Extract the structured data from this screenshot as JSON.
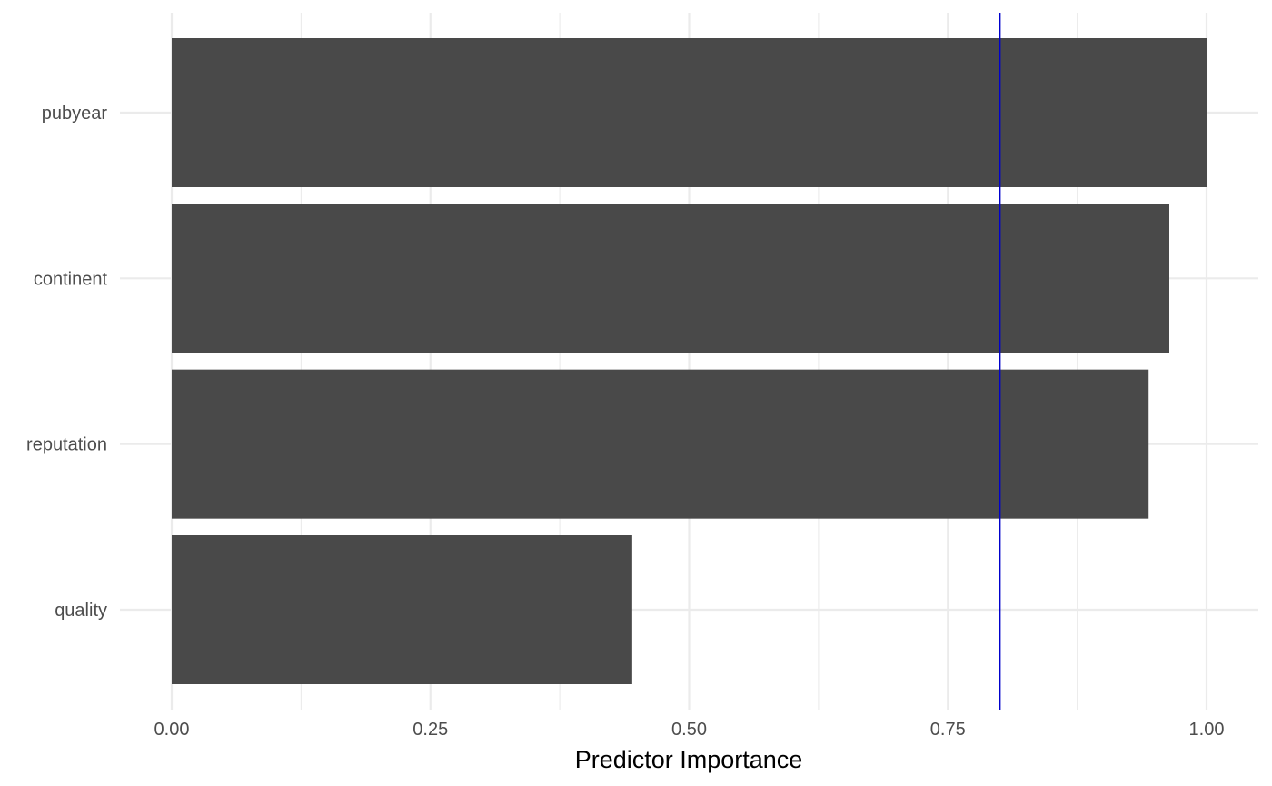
{
  "chart_data": {
    "type": "bar",
    "orientation": "horizontal",
    "categories": [
      "pubyear",
      "continent",
      "reputation",
      "quality"
    ],
    "values": [
      1.0,
      0.964,
      0.944,
      0.445
    ],
    "xlabel": "Predictor Importance",
    "ylabel": "",
    "xlim": [
      0,
      1
    ],
    "x_ticks": [
      0,
      0.25,
      0.5,
      0.75,
      1.0
    ],
    "x_tick_labels": [
      "0.00",
      "0.25",
      "0.50",
      "0.75",
      "1.00"
    ],
    "reference_line": {
      "x": 0.8
    },
    "grid": true,
    "legend": "none"
  },
  "colors": {
    "bar": "#494949",
    "reference_line": "#0000cc",
    "grid": "#ebebeb",
    "tick_text": "#4d4d4d",
    "axis_title": "#000000"
  }
}
